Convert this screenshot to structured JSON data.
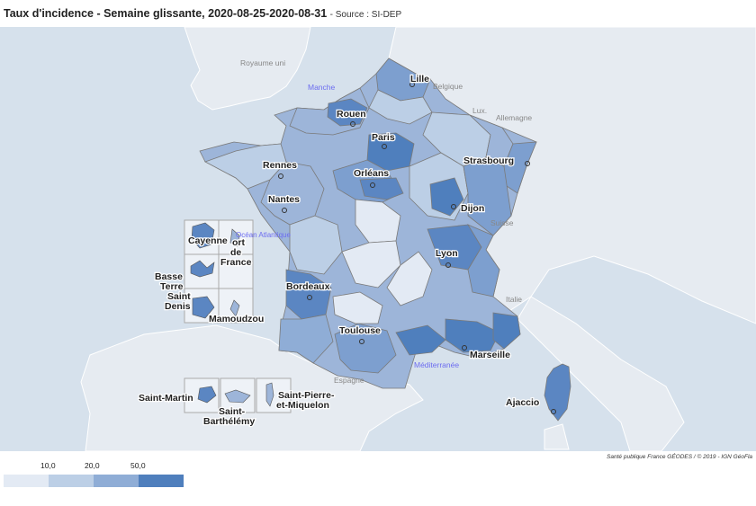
{
  "header": {
    "title": "Taux d'incidence - Semaine glissante, 2020-08-25-2020-08-31",
    "source": "- Source : SI-DEP"
  },
  "credit": "Santé publique France GÉODES / © 2019 - IGN GéoFla",
  "legend": {
    "ticks": [
      "10,0",
      "20,0",
      "50,0"
    ],
    "colors": [
      "#e3eaf4",
      "#bccfe6",
      "#8fadd6",
      "#4f7fbd"
    ]
  },
  "colors": {
    "sea": "#d6e1ec",
    "land": "#e6ebf1",
    "border": "#808080"
  },
  "map": {
    "cities": [
      "Lille",
      "Rouen",
      "Paris",
      "Rennes",
      "Orléans",
      "Strasbourg",
      "Nantes",
      "Dijon",
      "Lyon",
      "Bordeaux",
      "Toulouse",
      "Marseille",
      "Ajaccio"
    ],
    "overseas": [
      "Cayenne",
      "Fort de France",
      "Basse Terre",
      "Saint Denis",
      "Mamoudzou",
      "Saint-Martin",
      "Saint-Barthélémy",
      "Saint-Pierre-et-Miquelon"
    ],
    "countries": [
      "Royaume uni",
      "Belgique",
      "Lux.",
      "Allemagne",
      "Suisse",
      "Italie",
      "Espagne"
    ],
    "seas": [
      "Manche",
      "Océan Atlantique",
      "Méditerranée"
    ]
  }
}
